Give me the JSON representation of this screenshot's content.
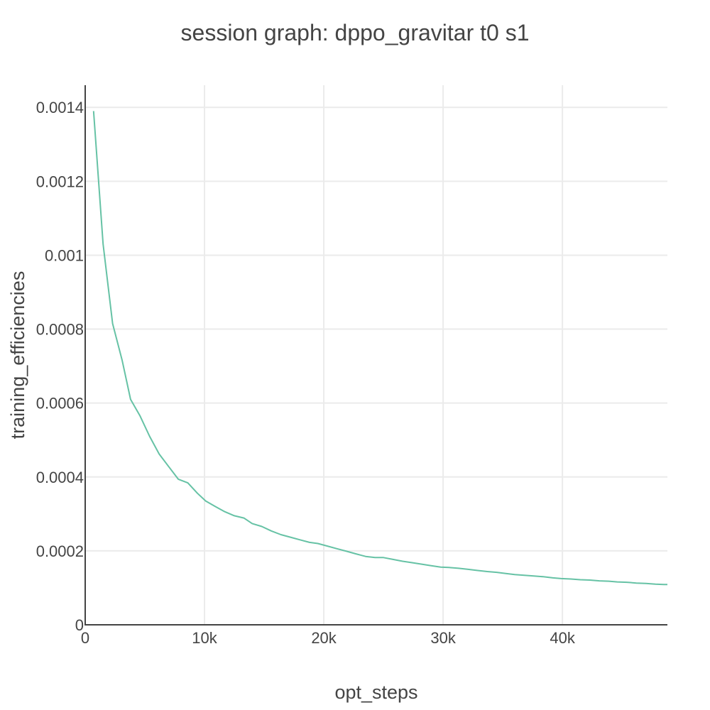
{
  "chart_data": {
    "type": "line",
    "title": "session graph: dppo_gravitar t0 s1",
    "xlabel": "opt_steps",
    "ylabel": "training_efficiencies",
    "xlim": [
      0,
      48800
    ],
    "ylim": [
      0,
      0.00146
    ],
    "grid": true,
    "x_ticks": [
      {
        "value": 0,
        "label": "0"
      },
      {
        "value": 10000,
        "label": "10k"
      },
      {
        "value": 20000,
        "label": "20k"
      },
      {
        "value": 30000,
        "label": "30k"
      },
      {
        "value": 40000,
        "label": "40k"
      }
    ],
    "y_ticks": [
      {
        "value": 0,
        "label": "0"
      },
      {
        "value": 0.0002,
        "label": "0.0002"
      },
      {
        "value": 0.0004,
        "label": "0.0004"
      },
      {
        "value": 0.0006,
        "label": "0.0006"
      },
      {
        "value": 0.0008,
        "label": "0.0008"
      },
      {
        "value": 0.001,
        "label": "0.001"
      },
      {
        "value": 0.0012,
        "label": "0.0012"
      },
      {
        "value": 0.0014,
        "label": "0.0014"
      }
    ],
    "series": [
      {
        "color": "#66c2a5",
        "x": [
          700,
          1500,
          2300,
          3100,
          3800,
          4600,
          5400,
          6200,
          7000,
          7800,
          8600,
          9400,
          10100,
          10900,
          11700,
          12500,
          13300,
          14000,
          14800,
          15600,
          16400,
          17200,
          18000,
          18800,
          19500,
          20300,
          21100,
          21900,
          22700,
          23500,
          24300,
          25000,
          25800,
          26600,
          27400,
          28200,
          29000,
          29800,
          30500,
          31300,
          32100,
          32900,
          33700,
          34500,
          35200,
          36000,
          36800,
          37600,
          38400,
          39200,
          39900,
          40700,
          41500,
          42300,
          43100,
          43900,
          44600,
          45400,
          46200,
          47000,
          47800,
          48500,
          48800
        ],
        "y": [
          0.00139,
          0.00103,
          0.000815,
          0.000715,
          0.00061,
          0.000565,
          0.00051,
          0.000462,
          0.000428,
          0.000394,
          0.000384,
          0.000356,
          0.000335,
          0.00032,
          0.000306,
          0.000295,
          0.000289,
          0.000274,
          0.000266,
          0.000254,
          0.000244,
          0.000237,
          0.00023,
          0.000223,
          0.00022,
          0.000213,
          0.000206,
          0.000199,
          0.000192,
          0.000185,
          0.000182,
          0.000182,
          0.000177,
          0.000172,
          0.000168,
          0.000164,
          0.00016,
          0.000156,
          0.000155,
          0.000153,
          0.00015,
          0.000147,
          0.000144,
          0.000142,
          0.000139,
          0.000136,
          0.000134,
          0.000132,
          0.00013,
          0.000127,
          0.000125,
          0.000124,
          0.000122,
          0.000121,
          0.000119,
          0.000118,
          0.000116,
          0.000115,
          0.000113,
          0.000112,
          0.00011,
          0.000109,
          0.000109
        ]
      }
    ]
  }
}
